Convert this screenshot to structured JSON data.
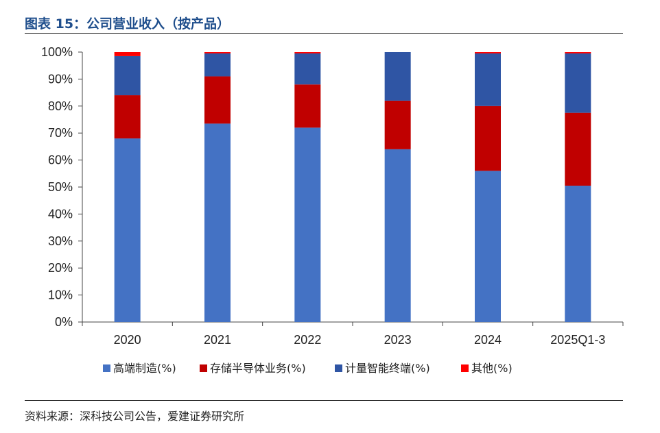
{
  "figure": {
    "title": "图表 15：公司营业收入（按产品）",
    "source": "资料来源：深科技公司公告，爱建证券研究所"
  },
  "chart_data": {
    "type": "bar",
    "stacked": true,
    "title": "图表 15：公司营业收入（按产品）",
    "xlabel": "",
    "ylabel": "",
    "categories": [
      "2020",
      "2021",
      "2022",
      "2023",
      "2024",
      "2025Q1-3"
    ],
    "ylim": [
      0,
      100
    ],
    "y_ticks": [
      0,
      10,
      20,
      30,
      40,
      50,
      60,
      70,
      80,
      90,
      100
    ],
    "y_tick_labels": [
      "0%",
      "10%",
      "20%",
      "30%",
      "40%",
      "50%",
      "60%",
      "70%",
      "80%",
      "90%",
      "100%"
    ],
    "legend_position": "bottom",
    "series": [
      {
        "name": "高端制造(%)",
        "color": "#4472c4",
        "values": [
          68,
          73.5,
          72,
          64,
          56,
          50.5
        ]
      },
      {
        "name": "存储半导体业务(%)",
        "color": "#c00000",
        "values": [
          16,
          17.5,
          16,
          18,
          24,
          27
        ]
      },
      {
        "name": "计量智能终端(%)",
        "color": "#2f55a4",
        "values": [
          14.5,
          8.5,
          11.5,
          18,
          19.5,
          22
        ]
      },
      {
        "name": "其他(%)",
        "color": "#ff0000",
        "values": [
          1.5,
          0.5,
          0.5,
          0,
          0.5,
          0.5
        ]
      }
    ]
  }
}
